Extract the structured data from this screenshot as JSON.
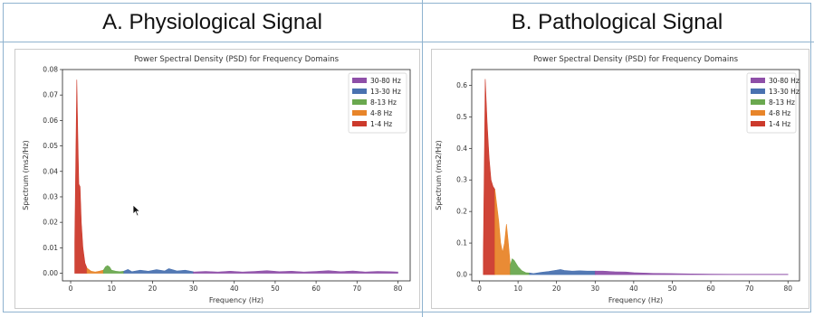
{
  "slide": {
    "panel_a_heading": "A. Physiological Signal",
    "panel_b_heading": "B. Pathological Signal"
  },
  "chart_data": [
    {
      "type": "area",
      "title": "Power Spectral Density (PSD) for Frequency Domains",
      "xlabel": "Frequency (Hz)",
      "ylabel": "Spectrum (ms2/Hz)",
      "xlim": [
        -2,
        83
      ],
      "ylim": [
        -0.003,
        0.08
      ],
      "xticks": [
        0,
        10,
        20,
        30,
        40,
        50,
        60,
        70,
        80
      ],
      "yticks": [
        0.0,
        0.01,
        0.02,
        0.03,
        0.04,
        0.05,
        0.06,
        0.07,
        0.08
      ],
      "ytick_labels": [
        "0.00",
        "0.01",
        "0.02",
        "0.03",
        "0.04",
        "0.05",
        "0.06",
        "0.07",
        "0.08"
      ],
      "grid": false,
      "legend_position": "top-right",
      "series": [
        {
          "name": "30-80 Hz",
          "color": "#8e4fa8",
          "x": [
            30,
            33,
            36,
            39,
            42,
            45,
            48,
            51,
            54,
            57,
            60,
            63,
            66,
            69,
            72,
            75,
            78,
            80
          ],
          "values": [
            0.0005,
            0.0007,
            0.0005,
            0.0008,
            0.0005,
            0.0007,
            0.001,
            0.0006,
            0.0008,
            0.0005,
            0.0007,
            0.001,
            0.0006,
            0.0009,
            0.0005,
            0.0007,
            0.0006,
            0.0005
          ]
        },
        {
          "name": "13-30 Hz",
          "color": "#4a72b0",
          "x": [
            13,
            14,
            15,
            17,
            19,
            21,
            23,
            24,
            26,
            28,
            30
          ],
          "values": [
            0.0008,
            0.0015,
            0.0006,
            0.0012,
            0.0008,
            0.0014,
            0.0009,
            0.0018,
            0.0009,
            0.0012,
            0.0006
          ]
        },
        {
          "name": "8-13 Hz",
          "color": "#6aa84f",
          "x": [
            8,
            8.5,
            9,
            9.5,
            10,
            11,
            12,
            13
          ],
          "values": [
            0.0012,
            0.0025,
            0.003,
            0.0025,
            0.0012,
            0.0008,
            0.0006,
            0.0008
          ]
        },
        {
          "name": "4-8 Hz",
          "color": "#e8852a",
          "x": [
            4,
            4.5,
            5,
            6,
            7,
            8
          ],
          "values": [
            0.002,
            0.0014,
            0.0008,
            0.0005,
            0.0008,
            0.0012
          ]
        },
        {
          "name": "1-4 Hz",
          "color": "#cc3a2c",
          "x": [
            1,
            1.5,
            1.8,
            2,
            2.3,
            2.6,
            3,
            3.5,
            4
          ],
          "values": [
            0.012,
            0.076,
            0.05,
            0.035,
            0.034,
            0.02,
            0.01,
            0.004,
            0.002
          ]
        }
      ]
    },
    {
      "type": "area",
      "title": "Power Spectral Density (PSD) for Frequency Domains",
      "xlabel": "Frequency (Hz)",
      "ylabel": "Spectrum (ms2/Hz)",
      "xlim": [
        -2,
        83
      ],
      "ylim": [
        -0.02,
        0.65
      ],
      "xticks": [
        0,
        10,
        20,
        30,
        40,
        50,
        60,
        70,
        80
      ],
      "yticks": [
        0.0,
        0.1,
        0.2,
        0.3,
        0.4,
        0.5,
        0.6
      ],
      "ytick_labels": [
        "0.0",
        "0.1",
        "0.2",
        "0.3",
        "0.4",
        "0.5",
        "0.6"
      ],
      "grid": false,
      "legend_position": "top-right",
      "series": [
        {
          "name": "30-80 Hz",
          "color": "#8e4fa8",
          "x": [
            30,
            32,
            35,
            38,
            40,
            45,
            50,
            55,
            60,
            65,
            70,
            75,
            80
          ],
          "values": [
            0.011,
            0.011,
            0.009,
            0.008,
            0.006,
            0.004,
            0.003,
            0.002,
            0.0015,
            0.001,
            0.001,
            0.001,
            0.001
          ]
        },
        {
          "name": "13-30 Hz",
          "color": "#4a72b0",
          "x": [
            13,
            14,
            16,
            18,
            20,
            21,
            22,
            24,
            26,
            28,
            30
          ],
          "values": [
            0.005,
            0.003,
            0.007,
            0.01,
            0.014,
            0.016,
            0.013,
            0.011,
            0.012,
            0.011,
            0.011
          ]
        },
        {
          "name": "8-13 Hz",
          "color": "#6aa84f",
          "x": [
            8,
            8.5,
            9,
            9.5,
            10,
            11,
            12,
            13
          ],
          "values": [
            0.03,
            0.05,
            0.045,
            0.035,
            0.025,
            0.012,
            0.006,
            0.005
          ]
        },
        {
          "name": "4-8 Hz",
          "color": "#e8852a",
          "x": [
            4,
            5,
            5.5,
            6,
            6.5,
            7,
            7.5,
            8
          ],
          "values": [
            0.27,
            0.17,
            0.1,
            0.07,
            0.1,
            0.16,
            0.1,
            0.03
          ]
        },
        {
          "name": "1-4 Hz",
          "color": "#cc3a2c",
          "x": [
            1,
            1.5,
            2,
            2.5,
            3,
            3.5,
            4
          ],
          "values": [
            0.06,
            0.62,
            0.48,
            0.37,
            0.3,
            0.28,
            0.27
          ]
        }
      ]
    }
  ]
}
